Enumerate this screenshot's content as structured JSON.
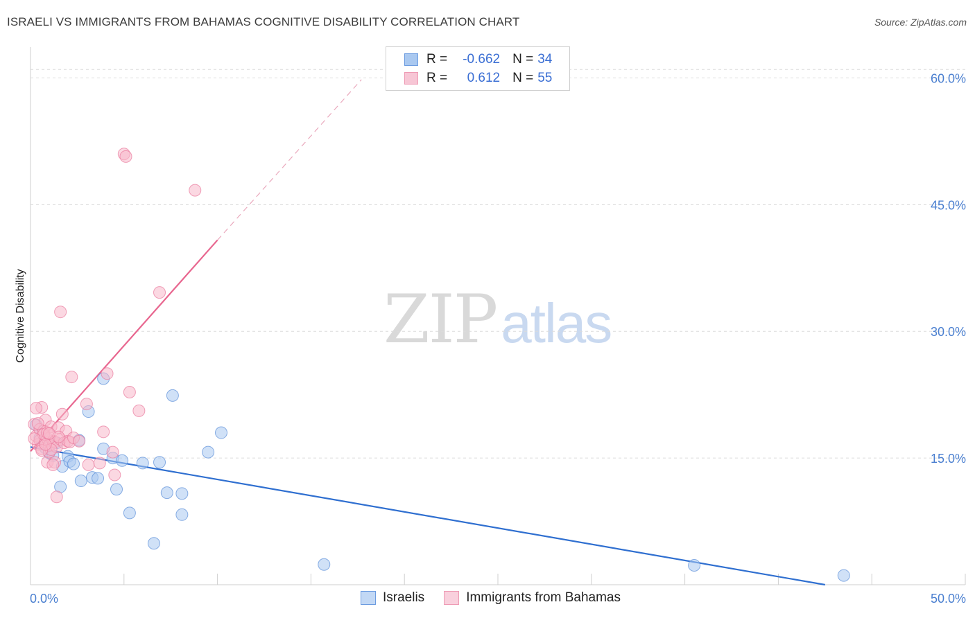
{
  "header": {
    "title": "ISRAELI VS IMMIGRANTS FROM BAHAMAS COGNITIVE DISABILITY CORRELATION CHART",
    "source": "Source: ZipAtlas.com"
  },
  "watermark": {
    "zip": "ZIP",
    "atlas": "atlas"
  },
  "legend": {
    "rows": [
      {
        "r_label": "R =",
        "r_value": "-0.662",
        "n_label": "N =",
        "n_value": "34",
        "color": "#a9c8f0"
      },
      {
        "r_label": "R =",
        "r_value": "0.612",
        "n_label": "N =",
        "n_value": "55",
        "color": "#f7b8cb"
      }
    ]
  },
  "chart_data": {
    "type": "scatter",
    "title": "ISRAELI VS IMMIGRANTS FROM BAHAMAS COGNITIVE DISABILITY CORRELATION CHART",
    "xlabel": "",
    "ylabel": "Cognitive Disability",
    "xlim": [
      0,
      50
    ],
    "ylim": [
      0,
      60
    ],
    "x_tick_labels": [
      "0.0%",
      "50.0%"
    ],
    "y_ticks": [
      15,
      30,
      45,
      60
    ],
    "y_tick_labels": [
      "15.0%",
      "30.0%",
      "45.0%",
      "60.0%"
    ],
    "grid": true,
    "legend_position": "top-center",
    "series": [
      {
        "name": "Israelis",
        "color": "#5b8fd8",
        "fill": "#a9c8f0",
        "trend": {
          "x0": 0,
          "y0": 16.3,
          "x1": 42.5,
          "y1": 0
        },
        "points": [
          [
            0.3,
            18.9
          ],
          [
            0.8,
            16.2
          ],
          [
            1.0,
            15.6
          ],
          [
            1.2,
            15.3
          ],
          [
            1.6,
            11.6
          ],
          [
            1.7,
            14.0
          ],
          [
            2.0,
            15.2
          ],
          [
            2.1,
            14.6
          ],
          [
            2.3,
            14.3
          ],
          [
            2.6,
            17.1
          ],
          [
            2.7,
            12.3
          ],
          [
            3.1,
            20.5
          ],
          [
            3.3,
            12.7
          ],
          [
            3.6,
            12.6
          ],
          [
            3.9,
            24.4
          ],
          [
            3.9,
            16.1
          ],
          [
            4.4,
            15.0
          ],
          [
            4.6,
            11.3
          ],
          [
            4.9,
            14.7
          ],
          [
            5.3,
            8.5
          ],
          [
            6.0,
            14.4
          ],
          [
            6.6,
            4.9
          ],
          [
            6.9,
            14.5
          ],
          [
            7.3,
            10.9
          ],
          [
            7.6,
            22.4
          ],
          [
            8.1,
            8.3
          ],
          [
            8.1,
            10.8
          ],
          [
            9.5,
            15.7
          ],
          [
            10.2,
            18.0
          ],
          [
            15.7,
            2.4
          ],
          [
            35.5,
            2.3
          ],
          [
            43.5,
            1.1
          ],
          [
            0.5,
            17.4
          ],
          [
            1.4,
            16.8
          ]
        ]
      },
      {
        "name": "Immigrants from Bahamas",
        "color": "#e9799c",
        "fill": "#f7b8cb",
        "trend": {
          "x0": 0,
          "y0": 15.8,
          "x1": 10.0,
          "y1": 40.8
        },
        "trend_dashed": {
          "x0": 10.0,
          "y0": 40.8,
          "x1": 17.7,
          "y1": 59.8
        },
        "points": [
          [
            0.2,
            19.0
          ],
          [
            0.3,
            17.6
          ],
          [
            0.4,
            16.6
          ],
          [
            0.5,
            17.1
          ],
          [
            0.5,
            18.4
          ],
          [
            0.6,
            16.1
          ],
          [
            0.6,
            21.0
          ],
          [
            0.7,
            18.2
          ],
          [
            0.8,
            16.9
          ],
          [
            0.8,
            19.5
          ],
          [
            0.9,
            14.5
          ],
          [
            0.9,
            17.3
          ],
          [
            1.0,
            15.7
          ],
          [
            1.0,
            16.5
          ],
          [
            1.1,
            18.7
          ],
          [
            1.2,
            17.0
          ],
          [
            1.3,
            16.9
          ],
          [
            1.3,
            14.5
          ],
          [
            1.4,
            16.3
          ],
          [
            1.4,
            10.4
          ],
          [
            1.5,
            18.6
          ],
          [
            1.6,
            17.2
          ],
          [
            1.6,
            32.3
          ],
          [
            1.7,
            20.2
          ],
          [
            1.8,
            16.8
          ],
          [
            1.9,
            18.2
          ],
          [
            2.0,
            17.0
          ],
          [
            2.1,
            16.9
          ],
          [
            2.2,
            24.6
          ],
          [
            2.3,
            17.4
          ],
          [
            3.0,
            21.4
          ],
          [
            3.1,
            14.2
          ],
          [
            3.7,
            14.4
          ],
          [
            3.9,
            18.1
          ],
          [
            4.1,
            25.0
          ],
          [
            4.4,
            15.7
          ],
          [
            4.5,
            13.0
          ],
          [
            5.0,
            51.0
          ],
          [
            5.1,
            50.7
          ],
          [
            5.3,
            22.8
          ],
          [
            5.8,
            20.6
          ],
          [
            6.9,
            34.6
          ],
          [
            8.8,
            46.7
          ],
          [
            0.3,
            20.9
          ],
          [
            0.4,
            19.1
          ],
          [
            0.7,
            17.8
          ],
          [
            0.9,
            18.0
          ],
          [
            1.1,
            16.0
          ],
          [
            1.2,
            14.2
          ],
          [
            1.5,
            17.5
          ],
          [
            0.2,
            17.3
          ],
          [
            0.6,
            15.9
          ],
          [
            1.0,
            17.9
          ],
          [
            0.8,
            16.6
          ],
          [
            2.6,
            17.0
          ]
        ]
      }
    ]
  }
}
